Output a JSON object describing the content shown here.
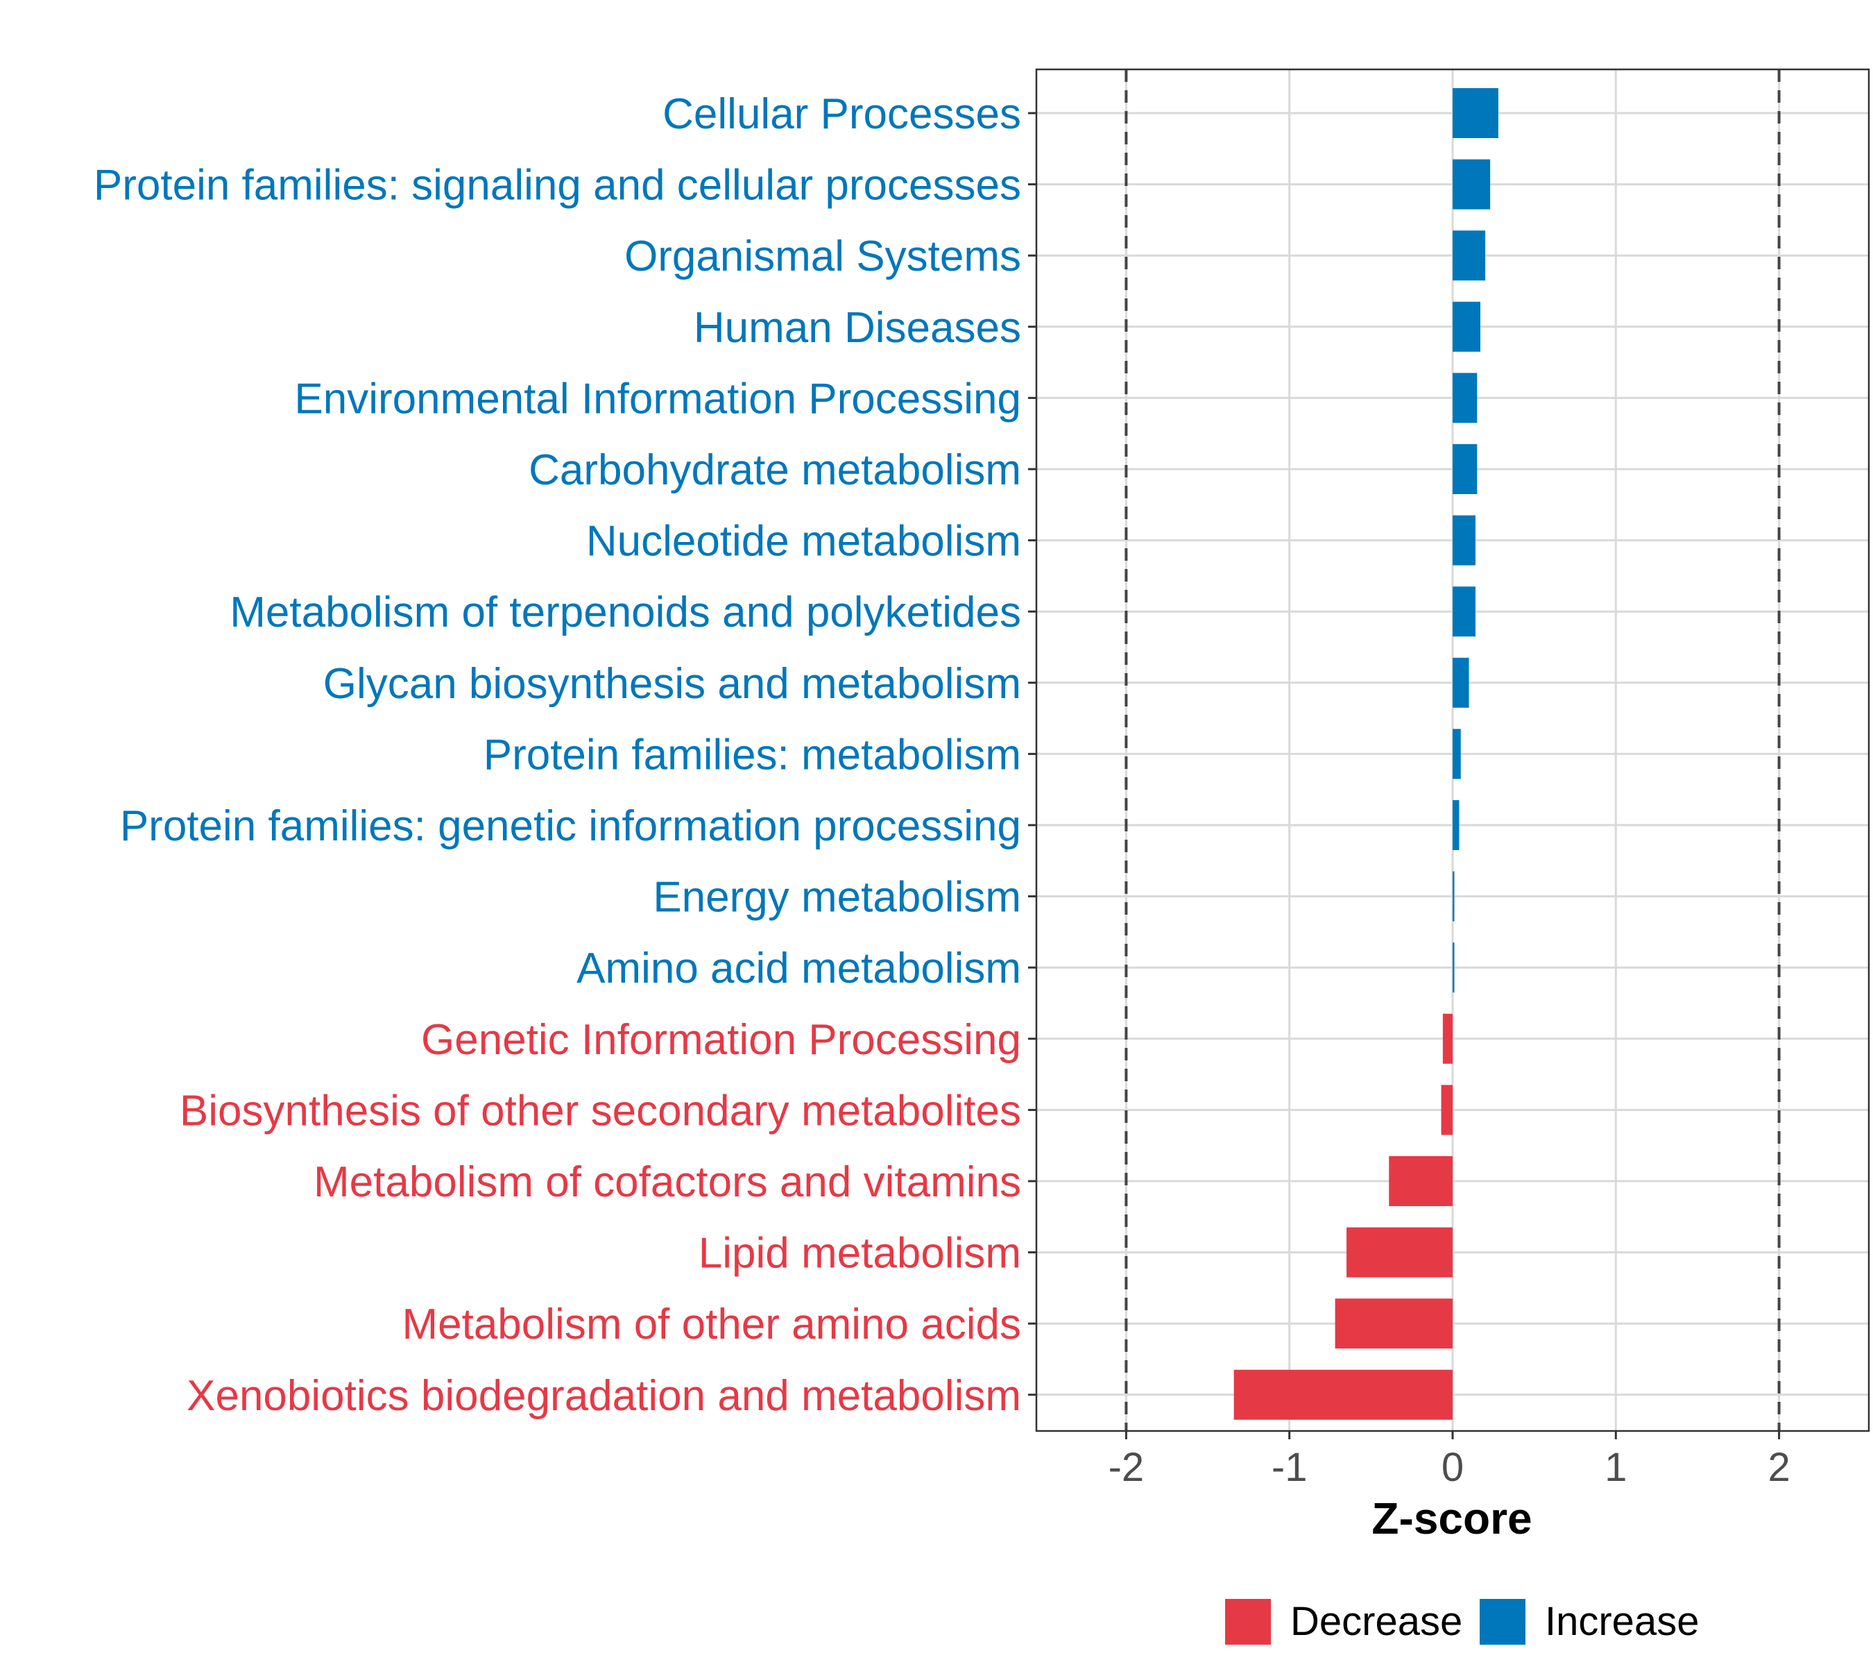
{
  "chart_data": {
    "type": "bar",
    "orientation": "horizontal",
    "xlabel": "Z-score",
    "ylabel": "",
    "xlim": [
      -2.55,
      2.55
    ],
    "x_ticks": [
      -2,
      -1,
      0,
      1,
      2
    ],
    "x_tick_labels": [
      "-2",
      "-1",
      "0",
      "1",
      "2"
    ],
    "reference_lines": [
      -2,
      2
    ],
    "grid": true,
    "legend_position": "bottom",
    "categories": [
      "Cellular Processes",
      "Protein families: signaling and cellular processes",
      "Organismal Systems",
      "Human Diseases",
      "Environmental Information Processing",
      "Carbohydrate metabolism",
      "Nucleotide metabolism",
      "Metabolism of terpenoids and polyketides",
      "Glycan biosynthesis and metabolism",
      "Protein families: metabolism",
      "Protein families: genetic information processing",
      "Energy metabolism",
      "Amino acid metabolism",
      "Genetic Information Processing",
      "Biosynthesis of other secondary metabolites",
      "Metabolism of cofactors and vitamins",
      "Lipid metabolism",
      "Metabolism of other amino acids",
      "Xenobiotics biodegradation and metabolism"
    ],
    "values": [
      0.28,
      0.23,
      0.2,
      0.17,
      0.15,
      0.15,
      0.14,
      0.14,
      0.1,
      0.05,
      0.04,
      0.01,
      0.005,
      -0.06,
      -0.07,
      -0.39,
      -0.65,
      -0.72,
      -1.34
    ],
    "groups": [
      "Increase",
      "Increase",
      "Increase",
      "Increase",
      "Increase",
      "Increase",
      "Increase",
      "Increase",
      "Increase",
      "Increase",
      "Increase",
      "Increase",
      "Increase",
      "Decrease",
      "Decrease",
      "Decrease",
      "Decrease",
      "Decrease",
      "Decrease"
    ],
    "legend": [
      {
        "label": "Decrease",
        "color": "#e63946"
      },
      {
        "label": "Increase",
        "color": "#0077bb"
      }
    ],
    "colors": {
      "Increase": "#0077bb",
      "Decrease": "#e63946"
    }
  }
}
